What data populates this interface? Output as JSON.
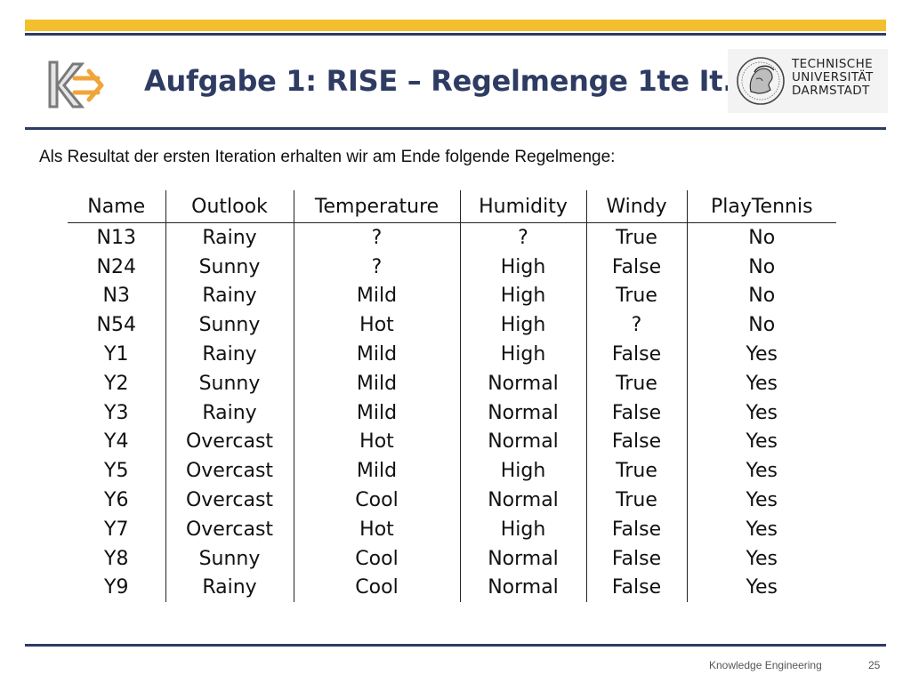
{
  "title": "Aufgabe 1: RISE – Regelmenge 1te It.",
  "intro": "Als Resultat der ersten Iteration erhalten wir am Ende folgende Regelmenge:",
  "university_logo": {
    "lines": [
      "TECHNISCHE",
      "UNIVERSITÄT",
      "DARMSTADT"
    ]
  },
  "colors": {
    "accent": "#f2c02e",
    "navy": "#2e3b63",
    "logo_orange": "#f0a53a",
    "logo_grey": "#7a7a7a"
  },
  "table": {
    "headers": [
      "Name",
      "Outlook",
      "Temperature",
      "Humidity",
      "Windy",
      "PlayTennis"
    ],
    "rows": [
      [
        "N13",
        "Rainy",
        "?",
        "?",
        "True",
        "No"
      ],
      [
        "N24",
        "Sunny",
        "?",
        "High",
        "False",
        "No"
      ],
      [
        "N3",
        "Rainy",
        "Mild",
        "High",
        "True",
        "No"
      ],
      [
        "N54",
        "Sunny",
        "Hot",
        "High",
        "?",
        "No"
      ],
      [
        "Y1",
        "Rainy",
        "Mild",
        "High",
        "False",
        "Yes"
      ],
      [
        "Y2",
        "Sunny",
        "Mild",
        "Normal",
        "True",
        "Yes"
      ],
      [
        "Y3",
        "Rainy",
        "Mild",
        "Normal",
        "False",
        "Yes"
      ],
      [
        "Y4",
        "Overcast",
        "Hot",
        "Normal",
        "False",
        "Yes"
      ],
      [
        "Y5",
        "Overcast",
        "Mild",
        "High",
        "True",
        "Yes"
      ],
      [
        "Y6",
        "Overcast",
        "Cool",
        "Normal",
        "True",
        "Yes"
      ],
      [
        "Y7",
        "Overcast",
        "Hot",
        "High",
        "False",
        "Yes"
      ],
      [
        "Y8",
        "Sunny",
        "Cool",
        "Normal",
        "False",
        "Yes"
      ],
      [
        "Y9",
        "Rainy",
        "Cool",
        "Normal",
        "False",
        "Yes"
      ]
    ]
  },
  "footer": {
    "text": "Knowledge Engineering",
    "page_number": "25"
  }
}
